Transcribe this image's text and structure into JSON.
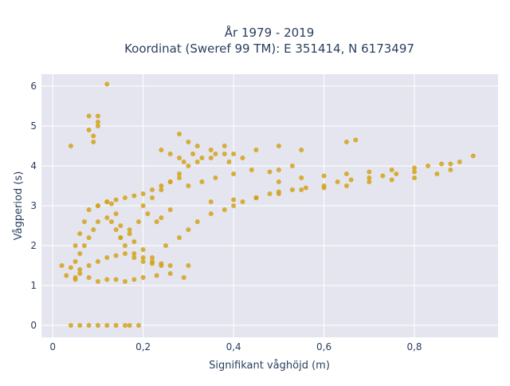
{
  "chart_data": {
    "type": "scatter",
    "title": "År 1979 - 2019",
    "subtitle": "Koordinat (Sweref 99 TM): E 351414, N 6173497",
    "xlabel": "Signifikant våghöjd (m)",
    "ylabel": "Vågperiod (s)",
    "xlim": [
      -0.025,
      0.985
    ],
    "ylim": [
      -0.3,
      6.3
    ],
    "x_ticks": [
      0,
      0.2,
      0.4,
      0.6,
      0.8
    ],
    "x_tick_labels": [
      "0",
      "0,2",
      "0,4",
      "0,6",
      "0,8"
    ],
    "y_ticks": [
      0,
      1,
      2,
      3,
      4,
      5,
      6
    ],
    "y_tick_labels": [
      "0",
      "1",
      "2",
      "3",
      "4",
      "5",
      "6"
    ],
    "grid": true,
    "marker_color": "#d4a21a",
    "plot_background": "#e5e5ef",
    "series": [
      {
        "name": "",
        "x": [
          0.12,
          0.1,
          0.08,
          0.1,
          0.1,
          0.09,
          0.08,
          0.09,
          0.04,
          0.04,
          0.06,
          0.08,
          0.1,
          0.12,
          0.14,
          0.16,
          0.17,
          0.19,
          0.02,
          0.03,
          0.05,
          0.04,
          0.06,
          0.05,
          0.08,
          0.1,
          0.12,
          0.14,
          0.16,
          0.18,
          0.2,
          0.23,
          0.26,
          0.29,
          0.3,
          0.05,
          0.06,
          0.07,
          0.08,
          0.1,
          0.12,
          0.13,
          0.14,
          0.15,
          0.17,
          0.18,
          0.2,
          0.22,
          0.05,
          0.06,
          0.07,
          0.08,
          0.09,
          0.1,
          0.12,
          0.13,
          0.14,
          0.15,
          0.16,
          0.18,
          0.2,
          0.22,
          0.24,
          0.06,
          0.08,
          0.1,
          0.12,
          0.14,
          0.16,
          0.18,
          0.2,
          0.22,
          0.24,
          0.26,
          0.2,
          0.22,
          0.24,
          0.26,
          0.28,
          0.3,
          0.32,
          0.35,
          0.38,
          0.25,
          0.28,
          0.3,
          0.32,
          0.35,
          0.38,
          0.4,
          0.42,
          0.45,
          0.3,
          0.33,
          0.36,
          0.4,
          0.44,
          0.48,
          0.5,
          0.53,
          0.45,
          0.48,
          0.5,
          0.53,
          0.56,
          0.6,
          0.63,
          0.66,
          0.7,
          0.73,
          0.76,
          0.8,
          0.5,
          0.55,
          0.6,
          0.65,
          0.7,
          0.75,
          0.8,
          0.83,
          0.86,
          0.88,
          0.9,
          0.93,
          0.28,
          0.3,
          0.32,
          0.35,
          0.38,
          0.4,
          0.45,
          0.5,
          0.55,
          0.65,
          0.67,
          0.24,
          0.26,
          0.28,
          0.29,
          0.31,
          0.33,
          0.36,
          0.39,
          0.42,
          0.15,
          0.17,
          0.19,
          0.21,
          0.23,
          0.24,
          0.26,
          0.1,
          0.12,
          0.14,
          0.16,
          0.18,
          0.2,
          0.22,
          0.24,
          0.26,
          0.28,
          0.35,
          0.4,
          0.45,
          0.5,
          0.55,
          0.6,
          0.65,
          0.7,
          0.75,
          0.8,
          0.85,
          0.88
        ],
        "y": [
          6.05,
          5.25,
          5.25,
          5.1,
          5.0,
          4.75,
          4.9,
          4.6,
          4.5,
          0.0,
          0.0,
          0.0,
          0.0,
          0.0,
          0.0,
          0.0,
          0.0,
          0.0,
          1.5,
          1.25,
          1.2,
          1.45,
          1.3,
          1.15,
          1.2,
          1.1,
          1.15,
          1.15,
          1.1,
          1.15,
          1.2,
          1.25,
          1.3,
          1.2,
          1.5,
          2.0,
          2.3,
          2.6,
          2.9,
          3.0,
          3.1,
          3.05,
          2.8,
          2.5,
          2.3,
          2.1,
          1.9,
          1.7,
          1.6,
          1.8,
          2.0,
          2.2,
          2.4,
          2.6,
          2.7,
          2.6,
          2.4,
          2.2,
          2.0,
          1.8,
          1.7,
          1.6,
          1.55,
          1.4,
          1.5,
          1.6,
          1.7,
          1.75,
          1.8,
          1.7,
          1.6,
          1.55,
          1.5,
          1.5,
          3.0,
          3.2,
          3.4,
          3.6,
          3.8,
          4.0,
          4.1,
          4.2,
          4.3,
          2.0,
          2.2,
          2.4,
          2.6,
          2.8,
          2.9,
          3.0,
          3.1,
          3.2,
          3.5,
          3.6,
          3.7,
          3.8,
          3.9,
          3.85,
          3.9,
          4.0,
          3.2,
          3.3,
          3.35,
          3.4,
          3.45,
          3.5,
          3.6,
          3.65,
          3.7,
          3.75,
          3.8,
          3.85,
          3.6,
          3.7,
          3.75,
          3.8,
          3.85,
          3.9,
          3.95,
          4.0,
          4.05,
          4.05,
          4.1,
          4.25,
          4.8,
          4.6,
          4.5,
          4.4,
          4.5,
          4.3,
          4.4,
          4.5,
          4.4,
          4.6,
          4.65,
          4.4,
          4.3,
          4.2,
          4.1,
          4.3,
          4.2,
          4.3,
          4.1,
          4.2,
          2.2,
          2.4,
          2.6,
          2.8,
          2.6,
          2.7,
          2.9,
          3.0,
          3.1,
          3.15,
          3.2,
          3.25,
          3.3,
          3.4,
          3.5,
          3.6,
          3.7,
          3.1,
          3.15,
          3.2,
          3.3,
          3.4,
          3.45,
          3.5,
          3.6,
          3.65,
          3.7,
          3.8,
          3.9
        ]
      }
    ]
  }
}
